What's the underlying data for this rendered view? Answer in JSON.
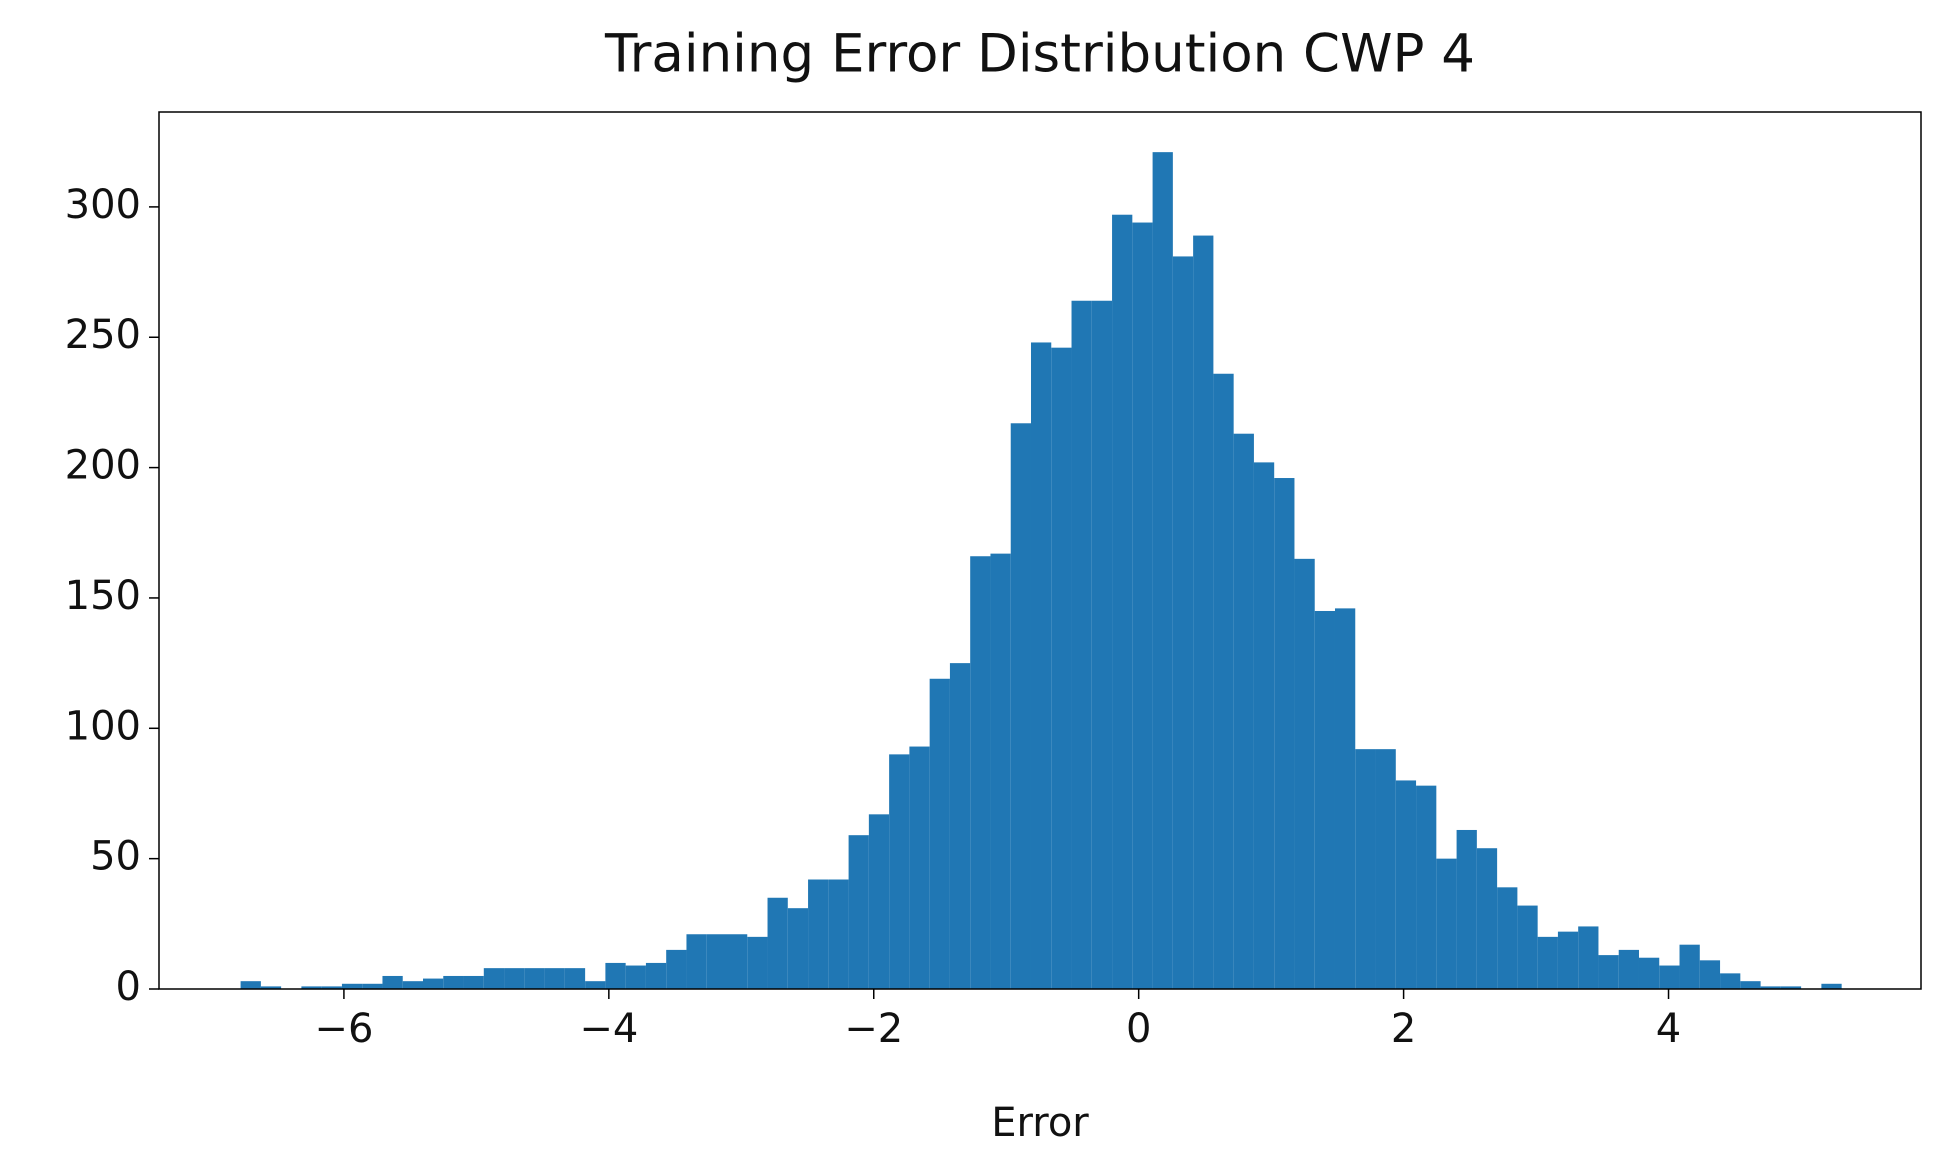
{
  "chart_data": {
    "type": "histogram",
    "title": "Training Error Distribution CWP 4",
    "xlabel": "Error",
    "color": "#2077b4",
    "bins": [
      -6.78,
      -6.627,
      -6.474,
      -6.321,
      -6.168,
      -6.015,
      -5.862,
      -5.709,
      -5.556,
      -5.403,
      -5.25,
      -5.097,
      -4.944,
      -4.791,
      -4.638,
      -4.485,
      -4.332,
      -4.179,
      -4.026,
      -3.873,
      -3.72,
      -3.567,
      -3.414,
      -3.261,
      -3.108,
      -2.955,
      -2.802,
      -2.649,
      -2.496,
      -2.343,
      -2.19,
      -2.037,
      -1.884,
      -1.731,
      -1.578,
      -1.425,
      -1.272,
      -1.119,
      -0.966,
      -0.813,
      -0.66,
      -0.507,
      -0.354,
      -0.201,
      -0.048,
      0.105,
      0.258,
      0.411,
      0.564,
      0.717,
      0.87,
      1.023,
      1.176,
      1.329,
      1.482,
      1.635,
      1.788,
      1.941,
      2.094,
      2.247,
      2.4,
      2.553,
      2.706,
      2.859,
      3.012,
      3.165,
      3.318,
      3.471,
      3.624,
      3.777,
      3.93,
      4.083,
      4.236,
      4.389,
      4.542,
      4.695,
      4.848,
      5.001,
      5.154,
      5.307
    ],
    "values": [
      3,
      1,
      0,
      1,
      1,
      2,
      2,
      5,
      3,
      4,
      5,
      5,
      8,
      8,
      8,
      8,
      8,
      3,
      10,
      9,
      10,
      15,
      21,
      21,
      21,
      20,
      35,
      31,
      42,
      42,
      59,
      67,
      90,
      93,
      119,
      125,
      166,
      167,
      217,
      248,
      246,
      264,
      264,
      297,
      294,
      321,
      281,
      289,
      236,
      213,
      202,
      196,
      165,
      145,
      146,
      92,
      92,
      80,
      78,
      50,
      61,
      54,
      39,
      32,
      20,
      22,
      24,
      13,
      15,
      12,
      9,
      17,
      11,
      6,
      3,
      1,
      1,
      0,
      2
    ],
    "xlim": [
      -7.396,
      5.906
    ],
    "ylim": [
      0,
      336.4
    ],
    "xticks": [
      {
        "value": -6,
        "label": "−6"
      },
      {
        "value": -4,
        "label": "−4"
      },
      {
        "value": -2,
        "label": "−2"
      },
      0,
      2,
      4
    ],
    "yticks": [
      0,
      50,
      100,
      150,
      200,
      250,
      300
    ]
  }
}
